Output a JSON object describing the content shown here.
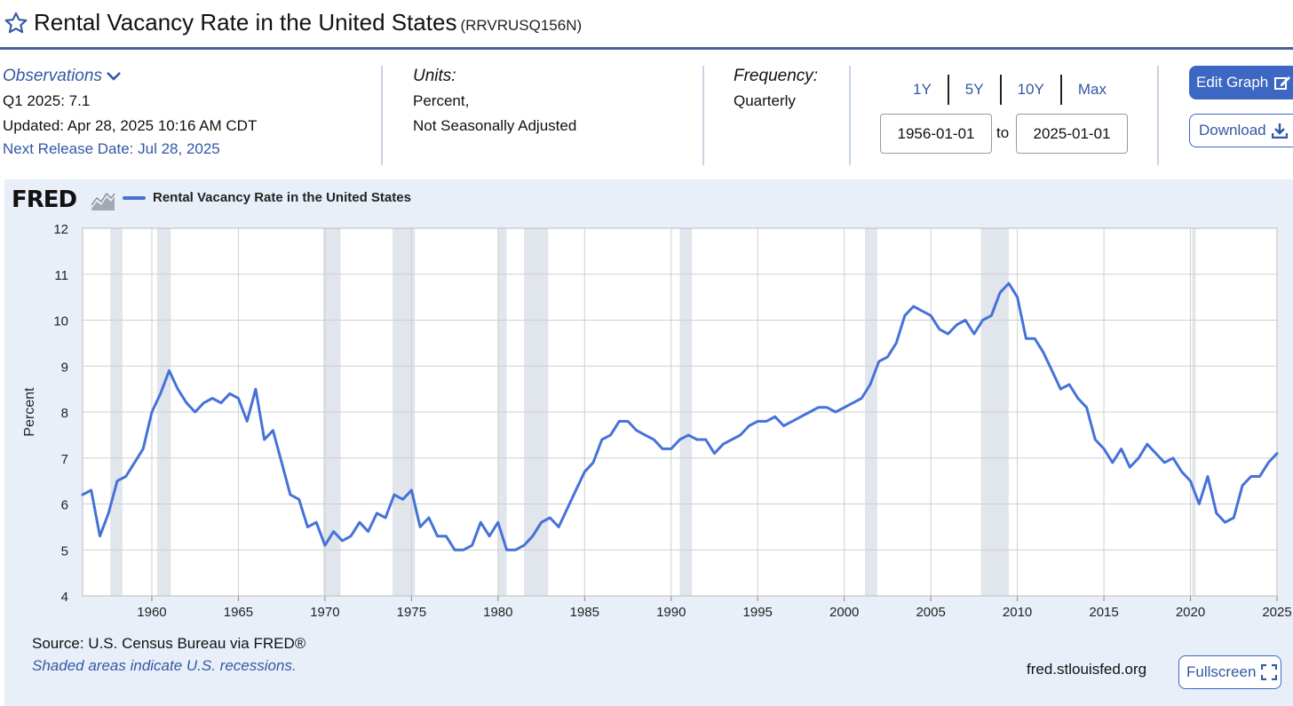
{
  "header": {
    "title": "Rental Vacancy Rate in the United States",
    "series_id": "(RRVRUSQ156N)"
  },
  "observations": {
    "label": "Observations",
    "latest": "Q1 2025: 7.1",
    "updated": "Updated: Apr 28, 2025 10:16 AM CDT",
    "next_release": "Next Release Date: Jul 28, 2025"
  },
  "units": {
    "label": "Units:",
    "line1": "Percent,",
    "line2": "Not Seasonally Adjusted"
  },
  "frequency": {
    "label": "Frequency:",
    "value": "Quarterly"
  },
  "range": {
    "buttons": [
      "1Y",
      "5Y",
      "10Y",
      "Max"
    ],
    "start": "1956-01-01",
    "to": "to",
    "end": "2025-01-01"
  },
  "actions": {
    "edit": "Edit Graph",
    "download": "Download",
    "fullscreen": "Fullscreen"
  },
  "footer": {
    "logo": "FRED",
    "source": "Source: U.S. Census Bureau via FRED®",
    "note": "Shaded areas indicate U.S. recessions.",
    "site": "fred.stlouisfed.org"
  },
  "colors": {
    "line": "#4572d9",
    "recession": "#e1e5ec",
    "accent": "#3c67c3"
  },
  "chart_data": {
    "type": "line",
    "title": "",
    "xlabel": "",
    "ylabel": "Percent",
    "xlim": [
      1956,
      2025
    ],
    "ylim": [
      4,
      12
    ],
    "yticks": [
      4,
      5,
      6,
      7,
      8,
      9,
      10,
      11,
      12
    ],
    "xticks": [
      1960,
      1965,
      1970,
      1975,
      1980,
      1985,
      1990,
      1995,
      2000,
      2005,
      2010,
      2015,
      2020,
      2025
    ],
    "grid": true,
    "legend_position": "top-left",
    "recessions": [
      [
        1957.6,
        1958.3
      ],
      [
        1960.3,
        1961.1
      ],
      [
        1969.9,
        1970.9
      ],
      [
        1973.9,
        1975.2
      ],
      [
        1980.0,
        1980.5
      ],
      [
        1981.5,
        1982.9
      ],
      [
        1990.5,
        1991.2
      ],
      [
        2001.2,
        2001.9
      ],
      [
        2007.9,
        2009.5
      ],
      [
        2020.1,
        2020.3
      ]
    ],
    "series": [
      {
        "name": "Rental Vacancy Rate in the United States",
        "x": [
          1956.0,
          1956.5,
          1957.0,
          1957.5,
          1958.0,
          1958.5,
          1959.0,
          1959.5,
          1960.0,
          1960.5,
          1961.0,
          1961.5,
          1962.0,
          1962.5,
          1963.0,
          1963.5,
          1964.0,
          1964.5,
          1965.0,
          1965.5,
          1966.0,
          1966.5,
          1967.0,
          1967.5,
          1968.0,
          1968.5,
          1969.0,
          1969.5,
          1970.0,
          1970.5,
          1971.0,
          1971.5,
          1972.0,
          1972.5,
          1973.0,
          1973.5,
          1974.0,
          1974.5,
          1975.0,
          1975.5,
          1976.0,
          1976.5,
          1977.0,
          1977.5,
          1978.0,
          1978.5,
          1979.0,
          1979.5,
          1980.0,
          1980.5,
          1981.0,
          1981.5,
          1982.0,
          1982.5,
          1983.0,
          1983.5,
          1984.0,
          1984.5,
          1985.0,
          1985.5,
          1986.0,
          1986.5,
          1987.0,
          1987.5,
          1988.0,
          1988.5,
          1989.0,
          1989.5,
          1990.0,
          1990.5,
          1991.0,
          1991.5,
          1992.0,
          1992.5,
          1993.0,
          1993.5,
          1994.0,
          1994.5,
          1995.0,
          1995.5,
          1996.0,
          1996.5,
          1997.0,
          1997.5,
          1998.0,
          1998.5,
          1999.0,
          1999.5,
          2000.0,
          2000.5,
          2001.0,
          2001.5,
          2002.0,
          2002.5,
          2003.0,
          2003.5,
          2004.0,
          2004.5,
          2005.0,
          2005.5,
          2006.0,
          2006.5,
          2007.0,
          2007.5,
          2008.0,
          2008.5,
          2009.0,
          2009.5,
          2010.0,
          2010.5,
          2011.0,
          2011.5,
          2012.0,
          2012.5,
          2013.0,
          2013.5,
          2014.0,
          2014.5,
          2015.0,
          2015.5,
          2016.0,
          2016.5,
          2017.0,
          2017.5,
          2018.0,
          2018.5,
          2019.0,
          2019.5,
          2020.0,
          2020.5,
          2021.0,
          2021.5,
          2022.0,
          2022.5,
          2023.0,
          2023.5,
          2024.0,
          2024.5,
          2025.0
        ],
        "values": [
          6.2,
          6.3,
          5.3,
          5.8,
          6.5,
          6.6,
          6.9,
          7.2,
          8.0,
          8.4,
          8.9,
          8.5,
          8.2,
          8.0,
          8.2,
          8.3,
          8.2,
          8.4,
          8.3,
          7.8,
          8.5,
          7.4,
          7.6,
          6.9,
          6.2,
          6.1,
          5.5,
          5.6,
          5.1,
          5.4,
          5.2,
          5.3,
          5.6,
          5.4,
          5.8,
          5.7,
          6.2,
          6.1,
          6.3,
          5.5,
          5.7,
          5.3,
          5.3,
          5.0,
          5.0,
          5.1,
          5.6,
          5.3,
          5.6,
          5.0,
          5.0,
          5.1,
          5.3,
          5.6,
          5.7,
          5.5,
          5.9,
          6.3,
          6.7,
          6.9,
          7.4,
          7.5,
          7.8,
          7.8,
          7.6,
          7.5,
          7.4,
          7.2,
          7.2,
          7.4,
          7.5,
          7.4,
          7.4,
          7.1,
          7.3,
          7.4,
          7.5,
          7.7,
          7.8,
          7.8,
          7.9,
          7.7,
          7.8,
          7.9,
          8.0,
          8.1,
          8.1,
          8.0,
          8.1,
          8.2,
          8.3,
          8.6,
          9.1,
          9.2,
          9.5,
          10.1,
          10.3,
          10.2,
          10.1,
          9.8,
          9.7,
          9.9,
          10.0,
          9.7,
          10.0,
          10.1,
          10.6,
          10.8,
          10.5,
          9.6,
          9.6,
          9.3,
          8.9,
          8.5,
          8.6,
          8.3,
          8.1,
          7.4,
          7.2,
          6.9,
          7.2,
          6.8,
          7.0,
          7.3,
          7.1,
          6.9,
          7.0,
          6.7,
          6.5,
          6.0,
          6.6,
          5.8,
          5.6,
          5.7,
          6.4,
          6.6,
          6.6,
          6.9,
          7.1
        ]
      }
    ]
  }
}
